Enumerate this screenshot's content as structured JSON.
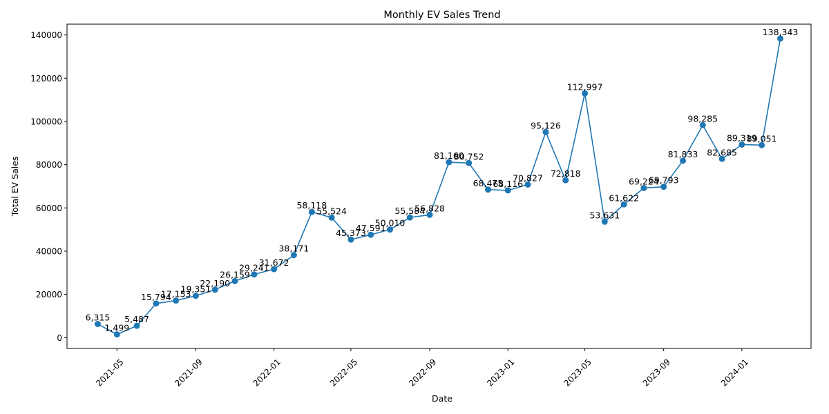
{
  "chart_data": {
    "type": "line",
    "title": "Monthly EV Sales Trend",
    "xlabel": "Date",
    "ylabel": "Total EV Sales",
    "x_type": "date",
    "ylim": [
      -5000,
      145000
    ],
    "yticks": [
      0,
      20000,
      40000,
      60000,
      80000,
      100000,
      120000,
      140000
    ],
    "ytick_labels": [
      "0",
      "20000",
      "40000",
      "60000",
      "80000",
      "100000",
      "120000",
      "140000"
    ],
    "xticks": [
      "2021-05-01",
      "2021-09-01",
      "2022-01-01",
      "2022-05-01",
      "2022-09-01",
      "2023-01-01",
      "2023-05-01",
      "2023-09-01",
      "2024-01-01"
    ],
    "xtick_labels": [
      "2021-05",
      "2021-09",
      "2022-01",
      "2022-05",
      "2022-09",
      "2023-01",
      "2023-05",
      "2023-09",
      "2024-01"
    ],
    "grid": false,
    "legend": false,
    "series": [
      {
        "color": "#1f77b4",
        "marker": "circle",
        "x": [
          "2021-04-01",
          "2021-05-01",
          "2021-06-01",
          "2021-07-01",
          "2021-08-01",
          "2021-09-01",
          "2021-10-01",
          "2021-11-01",
          "2021-12-01",
          "2022-01-01",
          "2022-02-01",
          "2022-03-01",
          "2022-04-01",
          "2022-05-01",
          "2022-06-01",
          "2022-07-01",
          "2022-08-01",
          "2022-09-01",
          "2022-10-01",
          "2022-11-01",
          "2022-12-01",
          "2023-01-01",
          "2023-02-01",
          "2023-03-01",
          "2023-04-01",
          "2023-05-01",
          "2023-06-01",
          "2023-07-01",
          "2023-08-01",
          "2023-09-01",
          "2023-10-01",
          "2023-11-01",
          "2023-12-01",
          "2024-01-01",
          "2024-02-01",
          "2024-03-01"
        ],
        "values": [
          6315,
          1499,
          5487,
          15794,
          17153,
          19351,
          22190,
          26159,
          29241,
          31672,
          38171,
          58118,
          55524,
          45373,
          47591,
          50010,
          55584,
          56828,
          81160,
          80752,
          68475,
          68116,
          70827,
          95126,
          72818,
          112997,
          53631,
          61622,
          69224,
          69793,
          81833,
          98285,
          82685,
          89319,
          89051,
          138343
        ],
        "labels": [
          "6,315",
          "1,499",
          "5,487",
          "15,794",
          "17,153",
          "19,351",
          "22,190",
          "26,159",
          "29,241",
          "31,672",
          "38,171",
          "58,118",
          "55,524",
          "45,373",
          "47,591",
          "50,010",
          "55,584",
          "56,828",
          "81,160",
          "80,752",
          "68,475",
          "68,116",
          "70,827",
          "95,126",
          "72,818",
          "112,997",
          "53,631",
          "61,622",
          "69,224",
          "69,793",
          "81,833",
          "98,285",
          "82,685",
          "89,319",
          "89,051",
          "138,343"
        ]
      }
    ]
  }
}
